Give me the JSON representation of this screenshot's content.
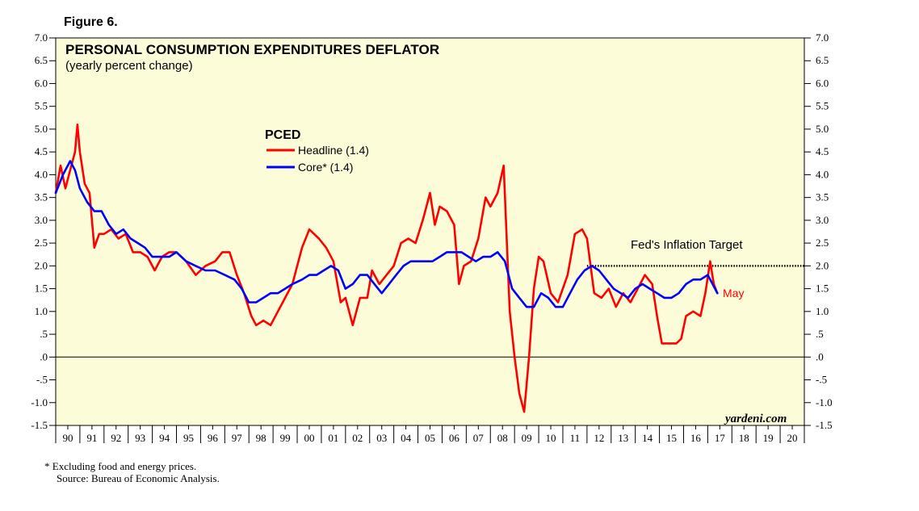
{
  "figure_label": "Figure 6.",
  "title": "PERSONAL CONSUMPTION EXPENDITURES DEFLATOR",
  "subtitle": "(yearly percent change)",
  "legend": {
    "title": "PCED",
    "headline_label": "Headline (1.4)",
    "core_label": "Core* (1.4)"
  },
  "annotations": {
    "target_label": "Fed's Inflation Target",
    "latest_label": "May",
    "watermark": "yardeni.com"
  },
  "footnotes": {
    "note": "*  Excluding food and energy prices.",
    "source": "Source: Bureau of Economic Analysis."
  },
  "colors": {
    "background": "#fdfcd9",
    "headline": "#ff0000",
    "core": "#0000ff",
    "zero_line": "#000000"
  },
  "chart_data": {
    "type": "line",
    "title": "PERSONAL CONSUMPTION EXPENDITURES DEFLATOR",
    "subtitle": "(yearly percent change)",
    "ylim": [
      -1.5,
      7.0
    ],
    "y_ticks": [
      "7.0",
      "6.5",
      "6.0",
      "5.5",
      "5.0",
      "4.5",
      "4.0",
      "3.5",
      "3.0",
      "2.5",
      "2.0",
      "1.5",
      "1.0",
      ".5",
      ".0",
      "-.5",
      "-1.0",
      "-1.5"
    ],
    "y_ticks_right": [
      "7.0",
      "6.5",
      "6.0",
      "5.5",
      "5.0",
      "4.5",
      "4.0",
      "3.5",
      "3.0",
      "2.5",
      "2.0",
      "1.5",
      "1.0",
      ".5",
      ".0",
      "-.5",
      "-1.0",
      "-1.5"
    ],
    "xlim": [
      1990,
      2021
    ],
    "x_tick_labels": [
      "90",
      "91",
      "92",
      "93",
      "94",
      "95",
      "96",
      "97",
      "98",
      "99",
      "00",
      "01",
      "02",
      "03",
      "04",
      "05",
      "06",
      "07",
      "08",
      "09",
      "10",
      "11",
      "12",
      "13",
      "14",
      "15",
      "16",
      "17",
      "18",
      "19",
      "20"
    ],
    "reference_line": {
      "y": 2.0,
      "x_start": 2012.0,
      "x_end": 2021.0,
      "label": "Fed's Inflation Target"
    },
    "grid": false,
    "legend_position": "top-center",
    "series": [
      {
        "name": "Headline (1.4)",
        "color": "#ff0000",
        "x": [
          1990.0,
          1990.2,
          1990.4,
          1990.6,
          1990.8,
          1990.9,
          1991.0,
          1991.2,
          1991.4,
          1991.6,
          1991.8,
          1992.0,
          1992.3,
          1992.6,
          1992.9,
          1993.2,
          1993.5,
          1993.8,
          1994.1,
          1994.4,
          1994.7,
          1995.0,
          1995.4,
          1995.8,
          1996.2,
          1996.6,
          1996.9,
          1997.2,
          1997.5,
          1997.8,
          1998.1,
          1998.3,
          1998.6,
          1998.9,
          1999.2,
          1999.5,
          1999.8,
          2000.2,
          2000.5,
          2000.9,
          2001.2,
          2001.5,
          2001.8,
          2002.0,
          2002.3,
          2002.6,
          2002.9,
          2003.1,
          2003.4,
          2003.7,
          2004.0,
          2004.3,
          2004.6,
          2004.9,
          2005.2,
          2005.5,
          2005.7,
          2005.9,
          2006.2,
          2006.5,
          2006.7,
          2006.9,
          2007.2,
          2007.5,
          2007.8,
          2008.0,
          2008.3,
          2008.55,
          2008.8,
          2009.0,
          2009.2,
          2009.4,
          2009.6,
          2009.8,
          2010.0,
          2010.2,
          2010.5,
          2010.8,
          2011.2,
          2011.5,
          2011.8,
          2012.0,
          2012.3,
          2012.6,
          2012.9,
          2013.2,
          2013.5,
          2013.8,
          2014.1,
          2014.4,
          2014.7,
          2014.9,
          2015.1,
          2015.4,
          2015.7,
          2015.9,
          2016.1,
          2016.4,
          2016.7,
          2016.9,
          2017.1,
          2017.25,
          2017.4
        ],
        "y": [
          3.6,
          4.2,
          3.7,
          4.1,
          4.5,
          5.1,
          4.5,
          3.8,
          3.6,
          2.4,
          2.7,
          2.7,
          2.8,
          2.6,
          2.7,
          2.3,
          2.3,
          2.2,
          1.9,
          2.2,
          2.3,
          2.3,
          2.1,
          1.8,
          2.0,
          2.1,
          2.3,
          2.3,
          1.8,
          1.4,
          0.9,
          0.7,
          0.8,
          0.7,
          1.0,
          1.3,
          1.6,
          2.4,
          2.8,
          2.6,
          2.4,
          2.1,
          1.2,
          1.3,
          0.7,
          1.3,
          1.3,
          1.9,
          1.6,
          1.8,
          2.0,
          2.5,
          2.6,
          2.5,
          3.0,
          3.6,
          2.9,
          3.3,
          3.2,
          2.9,
          1.6,
          2.0,
          2.1,
          2.6,
          3.5,
          3.3,
          3.6,
          4.2,
          1.0,
          0.0,
          -0.8,
          -1.2,
          0.0,
          1.5,
          2.2,
          2.1,
          1.4,
          1.2,
          1.8,
          2.7,
          2.8,
          2.6,
          1.4,
          1.3,
          1.5,
          1.1,
          1.4,
          1.2,
          1.5,
          1.8,
          1.6,
          0.9,
          0.3,
          0.3,
          0.3,
          0.4,
          0.9,
          1.0,
          0.9,
          1.4,
          2.1,
          1.6,
          1.4
        ]
      },
      {
        "name": "Core* (1.4)",
        "color": "#0000ff",
        "x": [
          1990.0,
          1990.3,
          1990.6,
          1990.8,
          1991.0,
          1991.3,
          1991.6,
          1991.9,
          1992.2,
          1992.5,
          1992.8,
          1993.1,
          1993.4,
          1993.7,
          1994.0,
          1994.3,
          1994.7,
          1995.0,
          1995.4,
          1995.8,
          1996.2,
          1996.6,
          1997.0,
          1997.4,
          1997.7,
          1998.0,
          1998.3,
          1998.6,
          1998.9,
          1999.2,
          1999.5,
          1999.8,
          2000.2,
          2000.5,
          2000.8,
          2001.1,
          2001.4,
          2001.7,
          2002.0,
          2002.3,
          2002.6,
          2002.9,
          2003.2,
          2003.5,
          2003.8,
          2004.1,
          2004.4,
          2004.7,
          2005.0,
          2005.3,
          2005.6,
          2005.9,
          2006.2,
          2006.5,
          2006.8,
          2007.1,
          2007.4,
          2007.7,
          2008.0,
          2008.3,
          2008.6,
          2008.9,
          2009.2,
          2009.5,
          2009.8,
          2010.1,
          2010.4,
          2010.7,
          2011.0,
          2011.3,
          2011.6,
          2011.9,
          2012.2,
          2012.5,
          2012.8,
          2013.1,
          2013.4,
          2013.7,
          2014.0,
          2014.3,
          2014.6,
          2014.9,
          2015.2,
          2015.5,
          2015.8,
          2016.1,
          2016.4,
          2016.7,
          2017.0,
          2017.2,
          2017.4
        ],
        "y": [
          3.6,
          4.0,
          4.3,
          4.1,
          3.7,
          3.4,
          3.2,
          3.2,
          2.9,
          2.7,
          2.8,
          2.6,
          2.5,
          2.4,
          2.2,
          2.2,
          2.2,
          2.3,
          2.1,
          2.0,
          1.9,
          1.9,
          1.8,
          1.7,
          1.5,
          1.2,
          1.2,
          1.3,
          1.4,
          1.4,
          1.5,
          1.6,
          1.7,
          1.8,
          1.8,
          1.9,
          2.0,
          1.9,
          1.5,
          1.6,
          1.8,
          1.8,
          1.6,
          1.4,
          1.6,
          1.8,
          2.0,
          2.1,
          2.1,
          2.1,
          2.1,
          2.2,
          2.3,
          2.3,
          2.3,
          2.2,
          2.1,
          2.2,
          2.2,
          2.3,
          2.1,
          1.5,
          1.3,
          1.1,
          1.1,
          1.4,
          1.3,
          1.1,
          1.1,
          1.4,
          1.7,
          1.9,
          2.0,
          1.9,
          1.7,
          1.5,
          1.4,
          1.3,
          1.5,
          1.6,
          1.5,
          1.4,
          1.3,
          1.3,
          1.4,
          1.6,
          1.7,
          1.7,
          1.8,
          1.6,
          1.4
        ]
      }
    ]
  }
}
